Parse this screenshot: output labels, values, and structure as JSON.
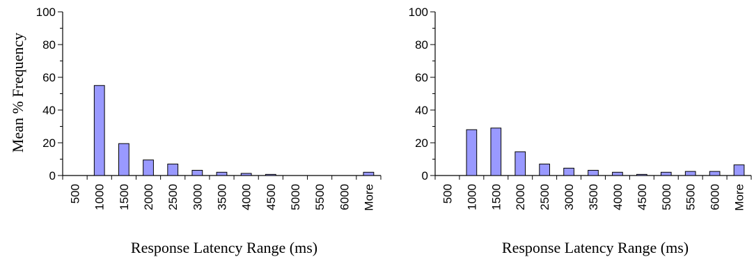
{
  "chart_data": [
    {
      "type": "bar",
      "title": "",
      "xlabel": "Response Latency Range (ms)",
      "ylabel": "Mean % Frequency",
      "ylim": [
        0,
        100
      ],
      "yticks": [
        0,
        20,
        40,
        60,
        80,
        100
      ],
      "grid": false,
      "bar_color": "#9999ff",
      "categories": [
        "500",
        "1000",
        "1500",
        "2000",
        "2500",
        "3000",
        "3500",
        "4000",
        "4500",
        "5000",
        "5500",
        "6000",
        "More"
      ],
      "values": [
        0,
        55,
        19.5,
        9.5,
        7,
        3.2,
        2,
        1.3,
        0.7,
        0,
        0,
        0,
        2
      ]
    },
    {
      "type": "bar",
      "title": "",
      "xlabel": "Response Latency Range (ms)",
      "ylabel": "",
      "ylim": [
        0,
        100
      ],
      "yticks": [
        0,
        20,
        40,
        60,
        80,
        100
      ],
      "grid": false,
      "bar_color": "#9999ff",
      "categories": [
        "500",
        "1000",
        "1500",
        "2000",
        "2500",
        "3000",
        "3500",
        "4000",
        "4500",
        "5000",
        "5500",
        "6000",
        "More"
      ],
      "values": [
        0,
        28,
        29,
        14.5,
        7,
        4.5,
        3.2,
        2,
        0.7,
        2,
        2.5,
        2.5,
        6.5
      ]
    }
  ]
}
